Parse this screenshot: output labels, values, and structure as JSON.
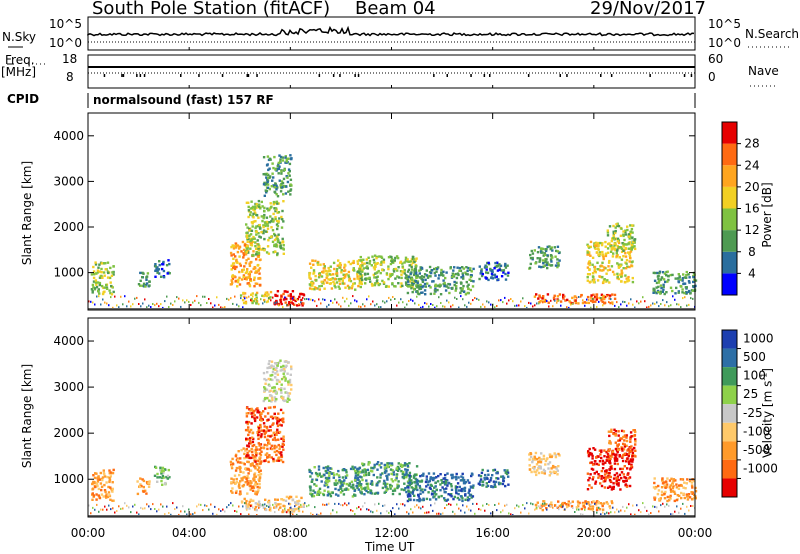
{
  "header": {
    "station": "South Pole Station (fitACF)",
    "beam": "Beam 04",
    "date": "29/Nov/2017"
  },
  "left_labels": {
    "nsky": "N.Sky",
    "freq": "Freq.",
    "mhz": "[MHz]",
    "cpid": "CPID"
  },
  "right_labels": {
    "nsearch": "N.Search",
    "nave": "Nave"
  },
  "sky_axis": {
    "top": "10^5",
    "bottom": "10^0"
  },
  "freq_axis": {
    "top": "18",
    "bottom": "8"
  },
  "nave_axis": {
    "top": "60",
    "bottom": "0"
  },
  "cpid_text": "normalsound (fast) 157 RF",
  "colors": {
    "power": [
      "#0000ff",
      "#2a6e9e",
      "#4e9a52",
      "#7fc241",
      "#f2d024",
      "#ffa51f",
      "#ff6a12",
      "#e60000"
    ],
    "velocity": [
      "#1d3fb0",
      "#2d6fa6",
      "#3f9a5a",
      "#8ed14a",
      "#c8c8c8",
      "#ffc96a",
      "#ff9a2a",
      "#ff6a12",
      "#e60000"
    ]
  },
  "chart_data": [
    {
      "type": "heatmap",
      "title": "",
      "xlabel": "",
      "ylabel": "Slant Range [km]",
      "xlim": [
        0,
        24
      ],
      "ylim": [
        180,
        4500
      ],
      "x_ticks": [
        "00:00",
        "04:00",
        "08:00",
        "12:00",
        "16:00",
        "20:00",
        "00:00"
      ],
      "y_ticks": [
        1000,
        2000,
        3000,
        4000
      ],
      "colorbar": {
        "label": "Power [dB]",
        "range": [
          0,
          32
        ],
        "ticks": [
          4,
          8,
          12,
          16,
          20,
          24,
          28
        ]
      },
      "regions": [
        {
          "t": [
            0.1,
            1.0
          ],
          "r": [
            550,
            1250
          ],
          "level": 3
        },
        {
          "t": [
            1.9,
            2.4
          ],
          "r": [
            700,
            1050
          ],
          "level": 2
        },
        {
          "t": [
            2.6,
            3.2
          ],
          "r": [
            900,
            1300
          ],
          "level": 1
        },
        {
          "t": [
            5.6,
            6.8
          ],
          "r": [
            700,
            1700
          ],
          "level": 5
        },
        {
          "t": [
            6.2,
            7.7
          ],
          "r": [
            1400,
            2600
          ],
          "level": 3
        },
        {
          "t": [
            6.9,
            8.0
          ],
          "r": [
            2700,
            3600
          ],
          "level": 2
        },
        {
          "t": [
            6.0,
            7.2
          ],
          "r": [
            350,
            600
          ],
          "level": 4
        },
        {
          "t": [
            7.3,
            8.5
          ],
          "r": [
            300,
            650
          ],
          "level": 7
        },
        {
          "t": [
            8.7,
            10.8
          ],
          "r": [
            650,
            1300
          ],
          "level": 4
        },
        {
          "t": [
            10.6,
            13.0
          ],
          "r": [
            700,
            1400
          ],
          "level": 3
        },
        {
          "t": [
            12.6,
            15.2
          ],
          "r": [
            550,
            1150
          ],
          "level": 2
        },
        {
          "t": [
            15.4,
            16.6
          ],
          "r": [
            850,
            1250
          ],
          "level": 1
        },
        {
          "t": [
            17.6,
            20.8
          ],
          "r": [
            350,
            550
          ],
          "level": 6
        },
        {
          "t": [
            17.4,
            18.6
          ],
          "r": [
            1100,
            1600
          ],
          "level": 2
        },
        {
          "t": [
            19.7,
            21.5
          ],
          "r": [
            800,
            1700
          ],
          "level": 4
        },
        {
          "t": [
            20.5,
            21.6
          ],
          "r": [
            1500,
            2100
          ],
          "level": 3
        },
        {
          "t": [
            22.3,
            24.0
          ],
          "r": [
            550,
            1050
          ],
          "level": 2
        }
      ]
    },
    {
      "type": "heatmap",
      "title": "",
      "xlabel": "Time UT",
      "ylabel": "Slant Range [km]",
      "xlim": [
        0,
        24
      ],
      "ylim": [
        180,
        4500
      ],
      "x_ticks": [
        "00:00",
        "04:00",
        "08:00",
        "12:00",
        "16:00",
        "20:00",
        "00:00"
      ],
      "y_ticks": [
        1000,
        2000,
        3000,
        4000
      ],
      "colorbar": {
        "label": "Velocity [m s^-1]",
        "ticks": [
          1000,
          500,
          100,
          25,
          -25,
          -100,
          -500,
          -1000
        ]
      },
      "regions": [
        {
          "t": [
            0.1,
            1.0
          ],
          "r": [
            550,
            1250
          ],
          "level": 6
        },
        {
          "t": [
            1.9,
            2.4
          ],
          "r": [
            700,
            1050
          ],
          "level": 6
        },
        {
          "t": [
            2.6,
            3.2
          ],
          "r": [
            900,
            1300
          ],
          "level": 3
        },
        {
          "t": [
            5.6,
            6.8
          ],
          "r": [
            700,
            1700
          ],
          "level": 6
        },
        {
          "t": [
            6.2,
            7.7
          ],
          "r": [
            1400,
            2600
          ],
          "level": 7
        },
        {
          "t": [
            6.9,
            8.0
          ],
          "r": [
            2700,
            3600
          ],
          "level": 4
        },
        {
          "t": [
            6.0,
            7.2
          ],
          "r": [
            350,
            600
          ],
          "level": 5
        },
        {
          "t": [
            7.3,
            8.5
          ],
          "r": [
            300,
            650
          ],
          "level": 5
        },
        {
          "t": [
            8.7,
            10.8
          ],
          "r": [
            650,
            1300
          ],
          "level": 2
        },
        {
          "t": [
            10.6,
            13.0
          ],
          "r": [
            700,
            1400
          ],
          "level": 2
        },
        {
          "t": [
            12.6,
            15.2
          ],
          "r": [
            550,
            1150
          ],
          "level": 1
        },
        {
          "t": [
            15.4,
            16.6
          ],
          "r": [
            850,
            1250
          ],
          "level": 1
        },
        {
          "t": [
            17.6,
            20.8
          ],
          "r": [
            350,
            550
          ],
          "level": 6
        },
        {
          "t": [
            17.4,
            18.6
          ],
          "r": [
            1100,
            1600
          ],
          "level": 5
        },
        {
          "t": [
            19.7,
            21.5
          ],
          "r": [
            800,
            1700
          ],
          "level": 8
        },
        {
          "t": [
            20.5,
            21.6
          ],
          "r": [
            1500,
            2100
          ],
          "level": 7
        },
        {
          "t": [
            22.3,
            24.0
          ],
          "r": [
            550,
            1050
          ],
          "level": 6
        }
      ]
    }
  ]
}
